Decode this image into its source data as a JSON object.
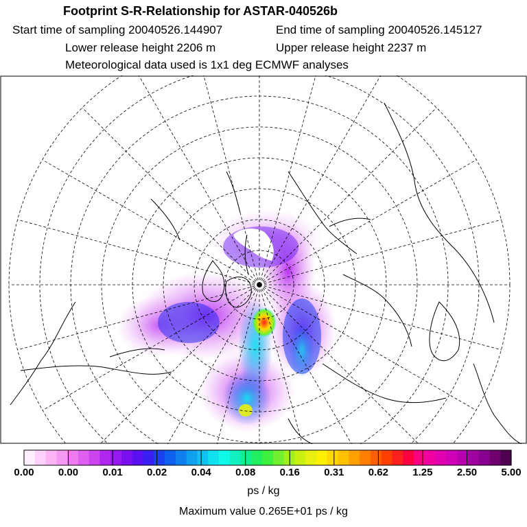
{
  "header": {
    "title": "Footprint S-R-Relationship for ASTAR-040526b",
    "start_time": "Start time of sampling 20040526.144907",
    "end_time": "End time of sampling 20040526.145127",
    "lower_height": "Lower release height 2206 m",
    "upper_height": "Upper release height 2237  m",
    "met_data": "Meteorological data used is 1x1 deg ECMWF analyses"
  },
  "colorbar": {
    "colors": [
      "#ffeefe",
      "#ffd0fb",
      "#fcb4f7",
      "#f598f2",
      "#ee7cf0",
      "#df5ff0",
      "#cc44f0",
      "#b028f0",
      "#9818f0",
      "#7a10f0",
      "#5a10f0",
      "#3a20f0",
      "#1a40f0",
      "#1060f0",
      "#1080f0",
      "#10a0f0",
      "#10c0f0",
      "#10e0f0",
      "#10f8e8",
      "#10f0c0",
      "#10f090",
      "#20f060",
      "#40f040",
      "#70f030",
      "#a0f020",
      "#c8f010",
      "#e8f010",
      "#fff000",
      "#ffd800",
      "#ffc000",
      "#ffa000",
      "#ff8000",
      "#ff6000",
      "#ff4000",
      "#ff2020",
      "#ff0040",
      "#ff0080",
      "#f000a0",
      "#e000b0",
      "#d000b8",
      "#b800b0",
      "#a000a0",
      "#880090",
      "#700070",
      "#500050"
    ],
    "tick_labels": [
      "0.00",
      "0.00",
      "0.01",
      "0.02",
      "0.04",
      "0.08",
      "0.16",
      "0.31",
      "0.62",
      "1.25",
      "2.50",
      "5.00"
    ]
  },
  "unit_label": "ps / kg",
  "max_value_label": "Maximum value  0.265E+01 ps / kg"
}
